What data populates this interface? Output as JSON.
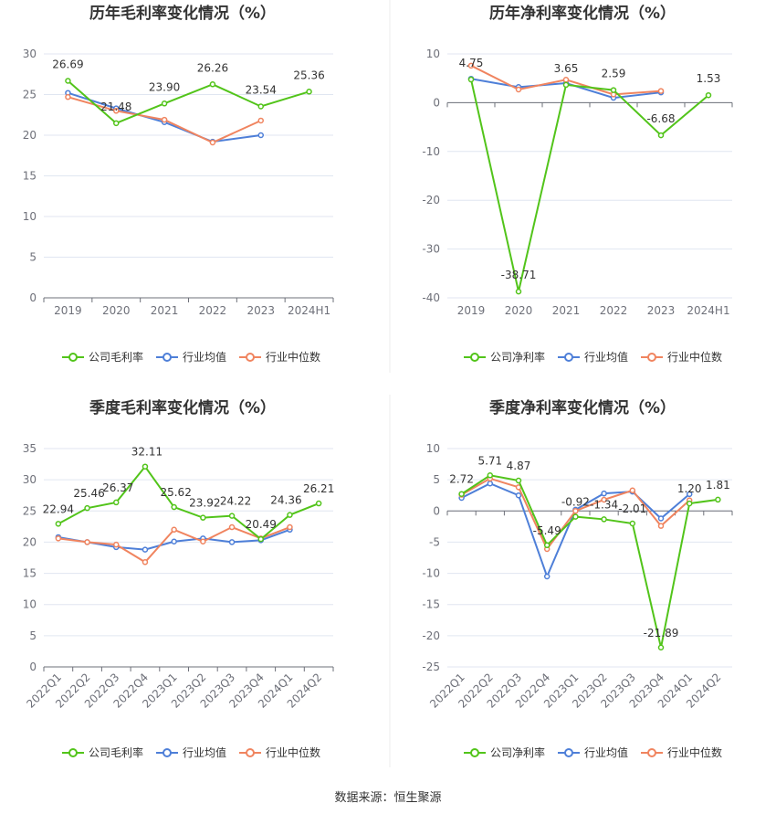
{
  "colors": {
    "company": "#52c41a",
    "avg": "#4e7fd8",
    "median": "#f0845f",
    "grid": "#e0e6f1",
    "axis": "#6e7079"
  },
  "legend_labels": {
    "gross": [
      "公司毛利率",
      "行业均值",
      "行业中位数"
    ],
    "net": [
      "公司净利率",
      "行业均值",
      "行业中位数"
    ]
  },
  "source": "数据来源：恒生聚源",
  "chart_data": [
    {
      "type": "line",
      "title": "历年毛利率变化情况（%）",
      "categories": [
        "2019",
        "2020",
        "2021",
        "2022",
        "2023",
        "2024H1"
      ],
      "ylim": [
        0,
        30
      ],
      "yticks": [
        0,
        5,
        10,
        15,
        20,
        25,
        30
      ],
      "grid": true,
      "legend_position": "bottom",
      "series": [
        {
          "name": "公司毛利率",
          "values": [
            26.69,
            21.48,
            23.9,
            26.26,
            23.54,
            25.36
          ],
          "labeled": true
        },
        {
          "name": "行业均值",
          "values": [
            25.2,
            23.3,
            21.6,
            19.2,
            20.0,
            null
          ]
        },
        {
          "name": "行业中位数",
          "values": [
            24.7,
            23.0,
            21.9,
            19.1,
            21.8,
            null
          ]
        }
      ]
    },
    {
      "type": "line",
      "title": "历年净利率变化情况（%）",
      "categories": [
        "2019",
        "2020",
        "2021",
        "2022",
        "2023",
        "2024H1"
      ],
      "ylim": [
        -40,
        10
      ],
      "yticks": [
        -40,
        -30,
        -20,
        -10,
        0,
        10
      ],
      "grid": true,
      "legend_position": "bottom",
      "series": [
        {
          "name": "公司净利率",
          "values": [
            4.75,
            -38.71,
            3.65,
            2.59,
            -6.68,
            1.53
          ],
          "labeled": true
        },
        {
          "name": "行业均值",
          "values": [
            4.9,
            3.2,
            4.0,
            1.0,
            2.1,
            null
          ]
        },
        {
          "name": "行业中位数",
          "values": [
            7.6,
            2.7,
            4.7,
            1.7,
            2.4,
            null
          ]
        }
      ]
    },
    {
      "type": "line",
      "title": "季度毛利率变化情况（%）",
      "categories": [
        "2022Q1",
        "2022Q2",
        "2022Q3",
        "2022Q4",
        "2023Q1",
        "2023Q2",
        "2023Q3",
        "2023Q4",
        "2024Q1",
        "2024Q2"
      ],
      "ylim": [
        0,
        35
      ],
      "yticks": [
        0,
        5,
        10,
        15,
        20,
        25,
        30,
        35
      ],
      "grid": true,
      "rotate_x_labels": true,
      "legend_position": "bottom",
      "series": [
        {
          "name": "公司毛利率",
          "values": [
            22.94,
            25.46,
            26.37,
            32.11,
            25.62,
            23.92,
            24.22,
            20.49,
            24.36,
            26.21
          ],
          "labeled": true
        },
        {
          "name": "行业均值",
          "values": [
            20.8,
            20.0,
            19.2,
            18.8,
            20.1,
            20.6,
            20.0,
            20.3,
            22.0,
            null
          ]
        },
        {
          "name": "行业中位数",
          "values": [
            20.6,
            20.0,
            19.6,
            16.8,
            22.0,
            20.1,
            22.4,
            20.6,
            22.4,
            null
          ]
        }
      ]
    },
    {
      "type": "line",
      "title": "季度净利率变化情况（%）",
      "categories": [
        "2022Q1",
        "2022Q2",
        "2022Q3",
        "2022Q4",
        "2023Q1",
        "2023Q2",
        "2023Q3",
        "2023Q4",
        "2024Q1",
        "2024Q2"
      ],
      "ylim": [
        -25,
        10
      ],
      "yticks": [
        -25,
        -20,
        -15,
        -10,
        -5,
        0,
        5,
        10
      ],
      "grid": true,
      "rotate_x_labels": true,
      "legend_position": "bottom",
      "series": [
        {
          "name": "公司净利率",
          "values": [
            2.72,
            5.71,
            4.87,
            -5.49,
            -0.92,
            -1.34,
            -2.01,
            -21.89,
            1.2,
            1.81
          ],
          "labeled": true
        },
        {
          "name": "行业均值",
          "values": [
            2.1,
            4.4,
            2.5,
            -10.5,
            0.2,
            2.8,
            3.1,
            -1.2,
            2.7,
            null
          ]
        },
        {
          "name": "行业中位数",
          "values": [
            2.6,
            5.2,
            3.8,
            -6.1,
            0.0,
            1.8,
            3.3,
            -2.4,
            1.7,
            null
          ]
        }
      ]
    }
  ]
}
